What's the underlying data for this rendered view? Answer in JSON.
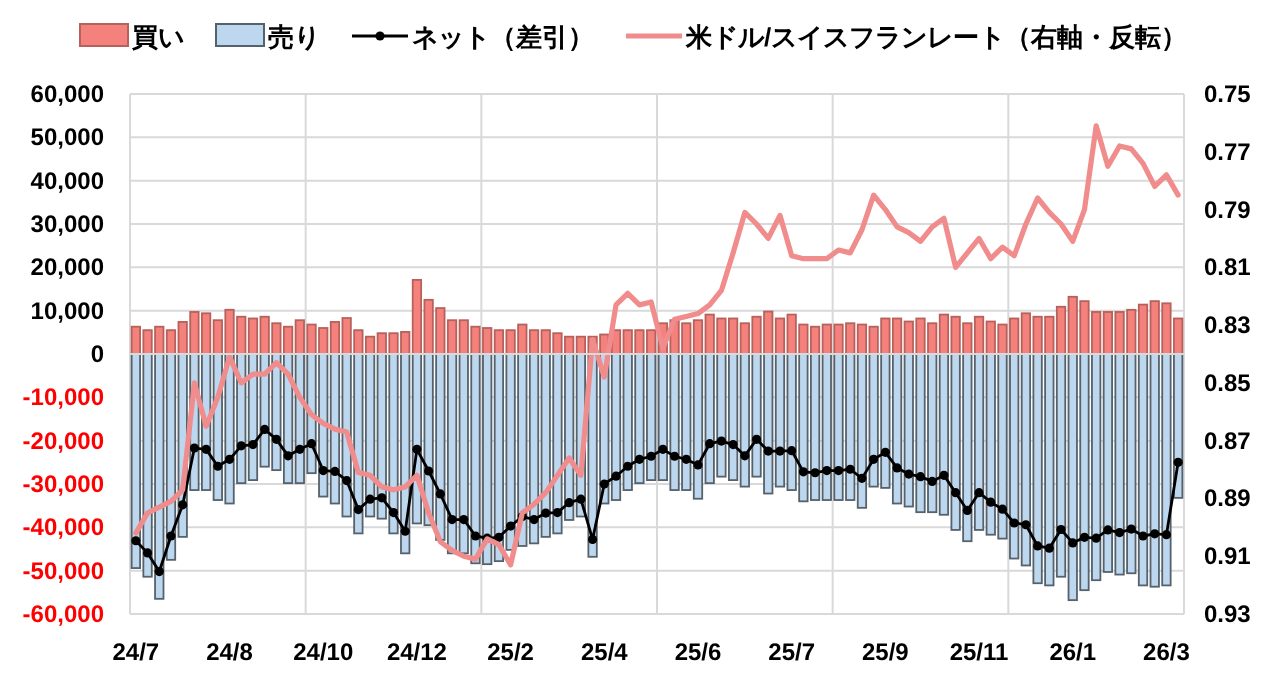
{
  "chart_data": {
    "type": "bar",
    "stacked": true,
    "grid": true,
    "legend": "top",
    "marker": "none",
    "categories": [
      "24/7",
      null,
      null,
      null,
      null,
      null,
      null,
      null,
      "24/8",
      null,
      null,
      null,
      null,
      null,
      null,
      null,
      "24/10",
      null,
      null,
      null,
      null,
      null,
      null,
      null,
      "24/12",
      null,
      null,
      null,
      null,
      null,
      null,
      null,
      "25/2",
      null,
      null,
      null,
      null,
      null,
      null,
      null,
      "25/4",
      null,
      null,
      null,
      null,
      null,
      null,
      null,
      "25/6",
      null,
      null,
      null,
      null,
      null,
      null,
      null,
      "25/7",
      null,
      null,
      null,
      null,
      null,
      null,
      null,
      "25/9",
      null,
      null,
      null,
      null,
      null,
      null,
      null,
      "25/11",
      null,
      null,
      null,
      null,
      null,
      null,
      null,
      "26/1",
      null,
      null,
      null,
      null,
      null,
      null,
      null,
      "26/3",
      null
    ],
    "ylim": [
      -60000,
      60000
    ],
    "yticks": [
      {
        "value": -60000,
        "label": "-60,000"
      },
      {
        "value": -50000,
        "label": "-50,000"
      },
      {
        "value": -40000,
        "label": "-40,000"
      },
      {
        "value": -30000,
        "label": "-30,000"
      },
      {
        "value": -20000,
        "label": "-20,000"
      },
      {
        "value": -10000,
        "label": "-10,000"
      },
      0,
      {
        "value": 10000,
        "label": "10,000"
      },
      {
        "value": 20000,
        "label": "20,000"
      },
      {
        "value": 30000,
        "label": "30,000"
      },
      {
        "value": 40000,
        "label": "40,000"
      },
      {
        "value": 50000,
        "label": "50,000"
      },
      {
        "value": 60000,
        "label": "60,000"
      }
    ],
    "y2lim": [
      0.93,
      0.75
    ],
    "y2ticks": [
      0.75,
      0.77,
      0.79,
      0.81,
      0.83,
      0.85,
      0.87,
      0.89,
      0.91,
      0.93
    ],
    "series": [
      {
        "name": "買い",
        "color": "#f4817b",
        "values": [
          6300,
          5500,
          6300,
          5500,
          7400,
          9700,
          9400,
          7800,
          10200,
          8600,
          8200,
          8600,
          7100,
          6300,
          7800,
          6800,
          6000,
          7400,
          8300,
          5500,
          4000,
          4800,
          4800,
          5100,
          17100,
          12500,
          10600,
          7800,
          7800,
          6300,
          6000,
          5500,
          5500,
          6800,
          5500,
          5500,
          4800,
          4000,
          4000,
          4000,
          4500,
          5500,
          5500,
          5500,
          5500,
          7100,
          7800,
          7100,
          7800,
          9100,
          8200,
          8200,
          7100,
          8600,
          9800,
          8200,
          9100,
          6800,
          6300,
          6800,
          6800,
          7100,
          6800,
          6300,
          8200,
          8200,
          7500,
          8200,
          7100,
          9100,
          8600,
          7100,
          8600,
          7500,
          6800,
          8200,
          9400,
          8600,
          8600,
          10900,
          13200,
          12200,
          9700,
          9700,
          9700,
          10200,
          11400,
          12200,
          11700,
          8200
        ]
      },
      {
        "name": "売り",
        "color": "#bdd7ee",
        "values": [
          -49400,
          -51400,
          -56500,
          -47500,
          -42200,
          -31400,
          -31400,
          -33700,
          -34500,
          -29800,
          -29100,
          -26000,
          -26800,
          -29800,
          -29800,
          -27500,
          -32900,
          -34500,
          -37500,
          -41400,
          -37500,
          -38000,
          -41400,
          -46000,
          -39100,
          -39500,
          -42900,
          -46000,
          -46000,
          -48300,
          -48500,
          -47800,
          -45200,
          -44300,
          -43700,
          -42200,
          -41400,
          -38300,
          -37500,
          -46800,
          -34500,
          -33700,
          -31400,
          -29800,
          -29100,
          -29100,
          -31400,
          -31400,
          -33400,
          -29800,
          -28300,
          -29100,
          -30600,
          -28300,
          -32200,
          -30600,
          -31400,
          -34000,
          -33700,
          -33700,
          -33700,
          -33700,
          -35500,
          -30600,
          -30900,
          -34500,
          -35200,
          -36500,
          -36500,
          -37100,
          -40600,
          -43200,
          -40600,
          -41700,
          -42600,
          -47200,
          -48800,
          -52900,
          -53400,
          -51400,
          -56800,
          -54500,
          -52200,
          -50300,
          -50900,
          -50600,
          -53400,
          -53700,
          -53400,
          -33200
        ]
      },
      {
        "name": "ネット（差引）",
        "type": "line",
        "marker": "circle",
        "color": "#000000",
        "values": [
          -43100,
          -45900,
          -50200,
          -42000,
          -34800,
          -21700,
          -22000,
          -25900,
          -24300,
          -21200,
          -20900,
          -17400,
          -19700,
          -23500,
          -22000,
          -20700,
          -26900,
          -27100,
          -29200,
          -35900,
          -33500,
          -33200,
          -36600,
          -40900,
          -22000,
          -27000,
          -32300,
          -38200,
          -38200,
          -42000,
          -42500,
          -42300,
          -39700,
          -37500,
          -38200,
          -36700,
          -36600,
          -34300,
          -33500,
          -42800,
          -30000,
          -28200,
          -25900,
          -24300,
          -23600,
          -22000,
          -23600,
          -24300,
          -25600,
          -20700,
          -20100,
          -20900,
          -23500,
          -19700,
          -22400,
          -22400,
          -22300,
          -27200,
          -27400,
          -26900,
          -26900,
          -26600,
          -28700,
          -24300,
          -22700,
          -26300,
          -27700,
          -28300,
          -29400,
          -28000,
          -32000,
          -36100,
          -32000,
          -34200,
          -35800,
          -39000,
          -39400,
          -44300,
          -44800,
          -40500,
          -43600,
          -42300,
          -42500,
          -40600,
          -41200,
          -40400,
          -42000,
          -41500,
          -41700,
          -25000
        ]
      },
      {
        "name": "米ドル/スイスフランレート（右軸・反転）",
        "type": "line",
        "axis": "y2",
        "color": "#f08c8c",
        "values": [
          0.902,
          0.895,
          0.893,
          0.891,
          0.887,
          0.85,
          0.865,
          0.855,
          0.841,
          0.85,
          0.847,
          0.847,
          0.843,
          0.847,
          0.855,
          0.861,
          0.864,
          0.866,
          0.867,
          0.881,
          0.882,
          0.886,
          0.887,
          0.886,
          0.882,
          0.895,
          0.905,
          0.908,
          0.91,
          0.911,
          0.904,
          0.906,
          0.913,
          0.895,
          0.892,
          0.888,
          0.882,
          0.876,
          0.882,
          0.835,
          0.848,
          0.823,
          0.819,
          0.823,
          0.822,
          0.838,
          0.828,
          0.827,
          0.826,
          0.823,
          0.818,
          0.805,
          0.791,
          0.795,
          0.8,
          0.792,
          0.806,
          0.807,
          0.807,
          0.807,
          0.804,
          0.805,
          0.797,
          0.785,
          0.79,
          0.796,
          0.798,
          0.801,
          0.796,
          0.793,
          0.81,
          0.805,
          0.8,
          0.807,
          0.803,
          0.806,
          0.795,
          0.786,
          0.791,
          0.795,
          0.801,
          0.79,
          0.761,
          0.775,
          0.768,
          0.769,
          0.774,
          0.782,
          0.778,
          0.785
        ]
      }
    ]
  }
}
